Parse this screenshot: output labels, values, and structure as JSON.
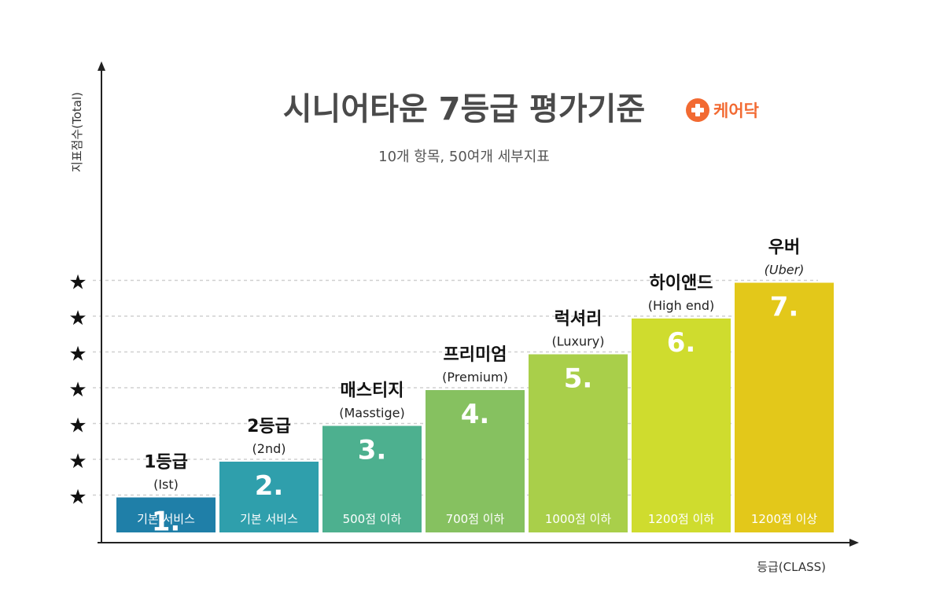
{
  "chart_data": {
    "type": "bar",
    "title": "시니어타운 7등급 평가기준",
    "subtitle": "10개 항목, 50여개 세부지표",
    "brand": {
      "name": "케어닥",
      "icon": "plus-circle-icon",
      "color": "#f26a32"
    },
    "ylabel": "지표점수(Total)",
    "xlabel": "등급(CLASS)",
    "ylim": [
      0,
      7.5
    ],
    "star_levels": [
      1,
      2,
      3,
      4,
      5,
      6,
      7
    ],
    "star_glyph": "★",
    "categories": [
      "1.",
      "2.",
      "3.",
      "4.",
      "5.",
      "6.",
      "7."
    ],
    "values": [
      1,
      2,
      3,
      4,
      5,
      6,
      7
    ],
    "grade_names": [
      "1등급",
      "2등급",
      "매스티지",
      "프리미엄",
      "럭셔리",
      "하이앤드",
      "우버"
    ],
    "grade_english": [
      "(Ist)",
      "(2nd)",
      "(Masstige)",
      "(Premium)",
      "(Luxury)",
      "(High end)",
      "(Uber)"
    ],
    "descriptions": [
      "기본 서비스",
      "기본 서비스",
      "500점 이하",
      "700점 이하",
      "1000점 이하",
      "1200점 이하",
      "1200점 이상"
    ],
    "colors": [
      "#1f7fa8",
      "#2f9fac",
      "#4db08f",
      "#86c160",
      "#a9cf4a",
      "#cfdc2e",
      "#e3c81a"
    ],
    "grid": true
  }
}
